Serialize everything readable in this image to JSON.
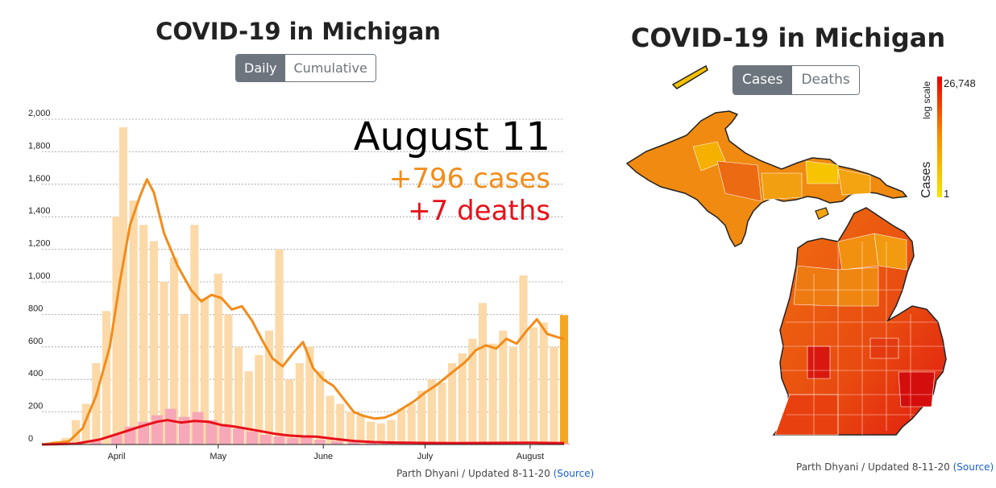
{
  "left": {
    "title": "COVID-19 in Michigan",
    "toggle": {
      "daily_label": "Daily",
      "cumulative_label": "Cumulative",
      "selected": "Daily"
    },
    "annotation": {
      "date": "August 11",
      "cases": "+796 cases",
      "deaths": "+7 deaths"
    },
    "footer": {
      "text": "Parth Dhyani / Updated 8-11-20",
      "source_label": "(Source)"
    }
  },
  "right": {
    "title": "COVID-19 in Michigan",
    "toggle": {
      "cases_label": "Cases",
      "deaths_label": "Deaths",
      "selected": "Cases"
    },
    "legend": {
      "max_label": "26,748",
      "min_label": "1",
      "scale_label": "log scale",
      "metric_label": "Cases",
      "color_low": "#f5e500",
      "color_high": "#e80000"
    },
    "footer": {
      "text": "Parth Dhyani / Updated 8-11-20",
      "source_label": "(Source)"
    }
  },
  "colors": {
    "cases_bar": "#fcd9a8",
    "cases_latest_bar": "#f5a623",
    "cases_line": "#f28c1a",
    "deaths_bar": "#f7a8b8",
    "deaths_line": "#e8101a",
    "toggle_active": "#6c757d",
    "link": "#1a5fd0"
  },
  "chart_data": {
    "type": "bar",
    "x_range": [
      "2020-03-10",
      "2020-08-11"
    ],
    "ylim": [
      0,
      2000
    ],
    "y_ticks": [
      0,
      200,
      400,
      600,
      800,
      1000,
      1200,
      1400,
      1600,
      1800,
      2000
    ],
    "y_tick_labels": [
      "0",
      "200",
      "400",
      "600",
      "800",
      "1,000",
      "1,200",
      "1,400",
      "1,600",
      "1,800",
      "2,000"
    ],
    "x_ticks": [
      {
        "date": "2020-04-01",
        "label": "April"
      },
      {
        "date": "2020-05-01",
        "label": "May"
      },
      {
        "date": "2020-06-01",
        "label": "June"
      },
      {
        "date": "2020-07-01",
        "label": "July"
      },
      {
        "date": "2020-08-01",
        "label": "August"
      }
    ],
    "grid": true,
    "series": [
      {
        "kind": "bar",
        "points": [
          [
            "2020-03-10",
            2
          ],
          [
            "2020-03-14",
            20
          ],
          [
            "2020-03-17",
            40
          ],
          [
            "2020-03-20",
            150
          ],
          [
            "2020-03-23",
            250
          ],
          [
            "2020-03-26",
            500
          ],
          [
            "2020-03-29",
            820
          ],
          [
            "2020-04-01",
            1400
          ],
          [
            "2020-04-03",
            1950
          ],
          [
            "2020-04-06",
            1500
          ],
          [
            "2020-04-09",
            1350
          ],
          [
            "2020-04-12",
            1250
          ],
          [
            "2020-04-15",
            1000
          ],
          [
            "2020-04-18",
            1150
          ],
          [
            "2020-04-21",
            800
          ],
          [
            "2020-04-24",
            1350
          ],
          [
            "2020-04-27",
            900
          ],
          [
            "2020-05-01",
            1050
          ],
          [
            "2020-05-04",
            800
          ],
          [
            "2020-05-07",
            600
          ],
          [
            "2020-05-10",
            450
          ],
          [
            "2020-05-13",
            550
          ],
          [
            "2020-05-16",
            700
          ],
          [
            "2020-05-19",
            1200
          ],
          [
            "2020-05-22",
            400
          ],
          [
            "2020-05-25",
            500
          ],
          [
            "2020-05-28",
            600
          ],
          [
            "2020-05-31",
            450
          ],
          [
            "2020-06-03",
            300
          ],
          [
            "2020-06-06",
            250
          ],
          [
            "2020-06-09",
            200
          ],
          [
            "2020-06-12",
            180
          ],
          [
            "2020-06-15",
            140
          ],
          [
            "2020-06-18",
            130
          ],
          [
            "2020-06-21",
            150
          ],
          [
            "2020-06-24",
            220
          ],
          [
            "2020-06-27",
            250
          ],
          [
            "2020-06-30",
            330
          ],
          [
            "2020-07-03",
            400
          ],
          [
            "2020-07-06",
            380
          ],
          [
            "2020-07-09",
            500
          ],
          [
            "2020-07-12",
            560
          ],
          [
            "2020-07-15",
            650
          ],
          [
            "2020-07-18",
            870
          ],
          [
            "2020-07-21",
            620
          ],
          [
            "2020-07-24",
            700
          ],
          [
            "2020-07-27",
            600
          ],
          [
            "2020-07-30",
            1040
          ],
          [
            "2020-08-02",
            720
          ],
          [
            "2020-08-05",
            750
          ],
          [
            "2020-08-08",
            600
          ],
          [
            "2020-08-11",
            796
          ]
        ]
      },
      {
        "kind": "line",
        "points": [
          [
            "2020-03-10",
            0
          ],
          [
            "2020-03-18",
            20
          ],
          [
            "2020-03-22",
            100
          ],
          [
            "2020-03-26",
            300
          ],
          [
            "2020-03-30",
            600
          ],
          [
            "2020-04-02",
            1000
          ],
          [
            "2020-04-05",
            1350
          ],
          [
            "2020-04-08",
            1530
          ],
          [
            "2020-04-10",
            1630
          ],
          [
            "2020-04-12",
            1550
          ],
          [
            "2020-04-15",
            1300
          ],
          [
            "2020-04-19",
            1100
          ],
          [
            "2020-04-23",
            950
          ],
          [
            "2020-04-26",
            880
          ],
          [
            "2020-04-29",
            920
          ],
          [
            "2020-05-02",
            900
          ],
          [
            "2020-05-05",
            830
          ],
          [
            "2020-05-08",
            850
          ],
          [
            "2020-05-11",
            760
          ],
          [
            "2020-05-14",
            640
          ],
          [
            "2020-05-17",
            530
          ],
          [
            "2020-05-20",
            480
          ],
          [
            "2020-05-23",
            560
          ],
          [
            "2020-05-26",
            630
          ],
          [
            "2020-05-29",
            470
          ],
          [
            "2020-06-01",
            400
          ],
          [
            "2020-06-04",
            360
          ],
          [
            "2020-06-07",
            280
          ],
          [
            "2020-06-10",
            200
          ],
          [
            "2020-06-13",
            175
          ],
          [
            "2020-06-16",
            160
          ],
          [
            "2020-06-19",
            165
          ],
          [
            "2020-06-22",
            190
          ],
          [
            "2020-06-25",
            230
          ],
          [
            "2020-06-28",
            270
          ],
          [
            "2020-07-01",
            320
          ],
          [
            "2020-07-04",
            360
          ],
          [
            "2020-07-07",
            410
          ],
          [
            "2020-07-10",
            460
          ],
          [
            "2020-07-13",
            510
          ],
          [
            "2020-07-16",
            580
          ],
          [
            "2020-07-19",
            610
          ],
          [
            "2020-07-22",
            590
          ],
          [
            "2020-07-25",
            650
          ],
          [
            "2020-07-28",
            620
          ],
          [
            "2020-07-31",
            700
          ],
          [
            "2020-08-03",
            770
          ],
          [
            "2020-08-06",
            680
          ],
          [
            "2020-08-09",
            660
          ],
          [
            "2020-08-11",
            650
          ]
        ]
      },
      {
        "kind": "bar",
        "points": [
          [
            "2020-03-20",
            5
          ],
          [
            "2020-03-26",
            20
          ],
          [
            "2020-04-01",
            60
          ],
          [
            "2020-04-05",
            110
          ],
          [
            "2020-04-09",
            140
          ],
          [
            "2020-04-13",
            180
          ],
          [
            "2020-04-17",
            220
          ],
          [
            "2020-04-21",
            170
          ],
          [
            "2020-04-25",
            200
          ],
          [
            "2020-04-29",
            150
          ],
          [
            "2020-05-03",
            120
          ],
          [
            "2020-05-07",
            100
          ],
          [
            "2020-05-11",
            80
          ],
          [
            "2020-05-15",
            60
          ],
          [
            "2020-05-19",
            50
          ],
          [
            "2020-05-23",
            40
          ],
          [
            "2020-05-27",
            45
          ],
          [
            "2020-05-31",
            30
          ],
          [
            "2020-06-05",
            20
          ],
          [
            "2020-06-10",
            15
          ],
          [
            "2020-06-15",
            10
          ],
          [
            "2020-06-20",
            8
          ],
          [
            "2020-06-25",
            10
          ],
          [
            "2020-07-01",
            8
          ],
          [
            "2020-07-08",
            10
          ],
          [
            "2020-07-15",
            10
          ],
          [
            "2020-07-22",
            8
          ],
          [
            "2020-07-29",
            10
          ],
          [
            "2020-08-05",
            12
          ],
          [
            "2020-08-11",
            7
          ]
        ]
      },
      {
        "kind": "line",
        "points": [
          [
            "2020-03-10",
            0
          ],
          [
            "2020-03-20",
            5
          ],
          [
            "2020-03-27",
            30
          ],
          [
            "2020-04-02",
            70
          ],
          [
            "2020-04-08",
            110
          ],
          [
            "2020-04-13",
            140
          ],
          [
            "2020-04-16",
            150
          ],
          [
            "2020-04-20",
            135
          ],
          [
            "2020-04-24",
            145
          ],
          [
            "2020-04-28",
            140
          ],
          [
            "2020-05-02",
            120
          ],
          [
            "2020-05-06",
            110
          ],
          [
            "2020-05-10",
            95
          ],
          [
            "2020-05-14",
            80
          ],
          [
            "2020-05-18",
            65
          ],
          [
            "2020-05-22",
            55
          ],
          [
            "2020-05-26",
            50
          ],
          [
            "2020-05-30",
            48
          ],
          [
            "2020-06-04",
            35
          ],
          [
            "2020-06-10",
            22
          ],
          [
            "2020-06-16",
            15
          ],
          [
            "2020-06-22",
            12
          ],
          [
            "2020-07-01",
            10
          ],
          [
            "2020-07-10",
            9
          ],
          [
            "2020-07-20",
            10
          ],
          [
            "2020-08-01",
            11
          ],
          [
            "2020-08-11",
            9
          ]
        ]
      }
    ]
  }
}
